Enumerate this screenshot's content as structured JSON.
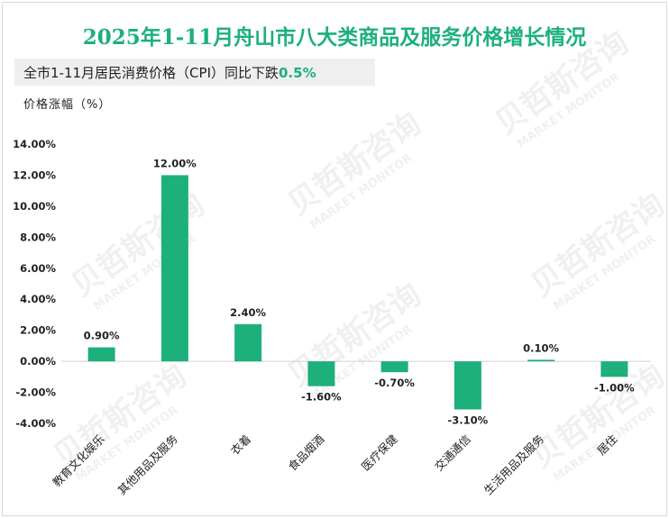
{
  "header": {
    "title": "2025年1-11月舟山市八大类商品及服务价格增长情况",
    "subtitle_prefix": "全市1-11月居民消费价格（CPI）同比下跌",
    "subtitle_value": "0.5%"
  },
  "watermark": {
    "brand": "贝哲斯咨询",
    "brand_en": "MARKET MONITOR"
  },
  "colors": {
    "accent": "#1db07b",
    "bar": "#1db07b",
    "text": "#222222"
  },
  "chart_data": {
    "type": "bar",
    "title": "2025年1-11月舟山市八大类商品及服务价格增长情况",
    "ylabel": "价格涨幅（%）",
    "xlabel": "",
    "ylim": [
      -4,
      14
    ],
    "yticks": [
      "14.00%",
      "12.00%",
      "10.00%",
      "8.00%",
      "6.00%",
      "4.00%",
      "2.00%",
      "0.00%",
      "-2.00%",
      "-4.00%"
    ],
    "categories": [
      "教育文化娱乐",
      "其他用品及服务",
      "衣着",
      "食品烟酒",
      "医疗保健",
      "交通通信",
      "生活用品及服务",
      "居住"
    ],
    "values": [
      0.9,
      12.0,
      2.4,
      -1.6,
      -0.7,
      -3.1,
      0.1,
      -1.0
    ],
    "data_labels": [
      "0.90%",
      "12.00%",
      "2.40%",
      "-1.60%",
      "-0.70%",
      "-3.10%",
      "0.10%",
      "-1.00%"
    ],
    "grid": false,
    "legend": "none"
  }
}
